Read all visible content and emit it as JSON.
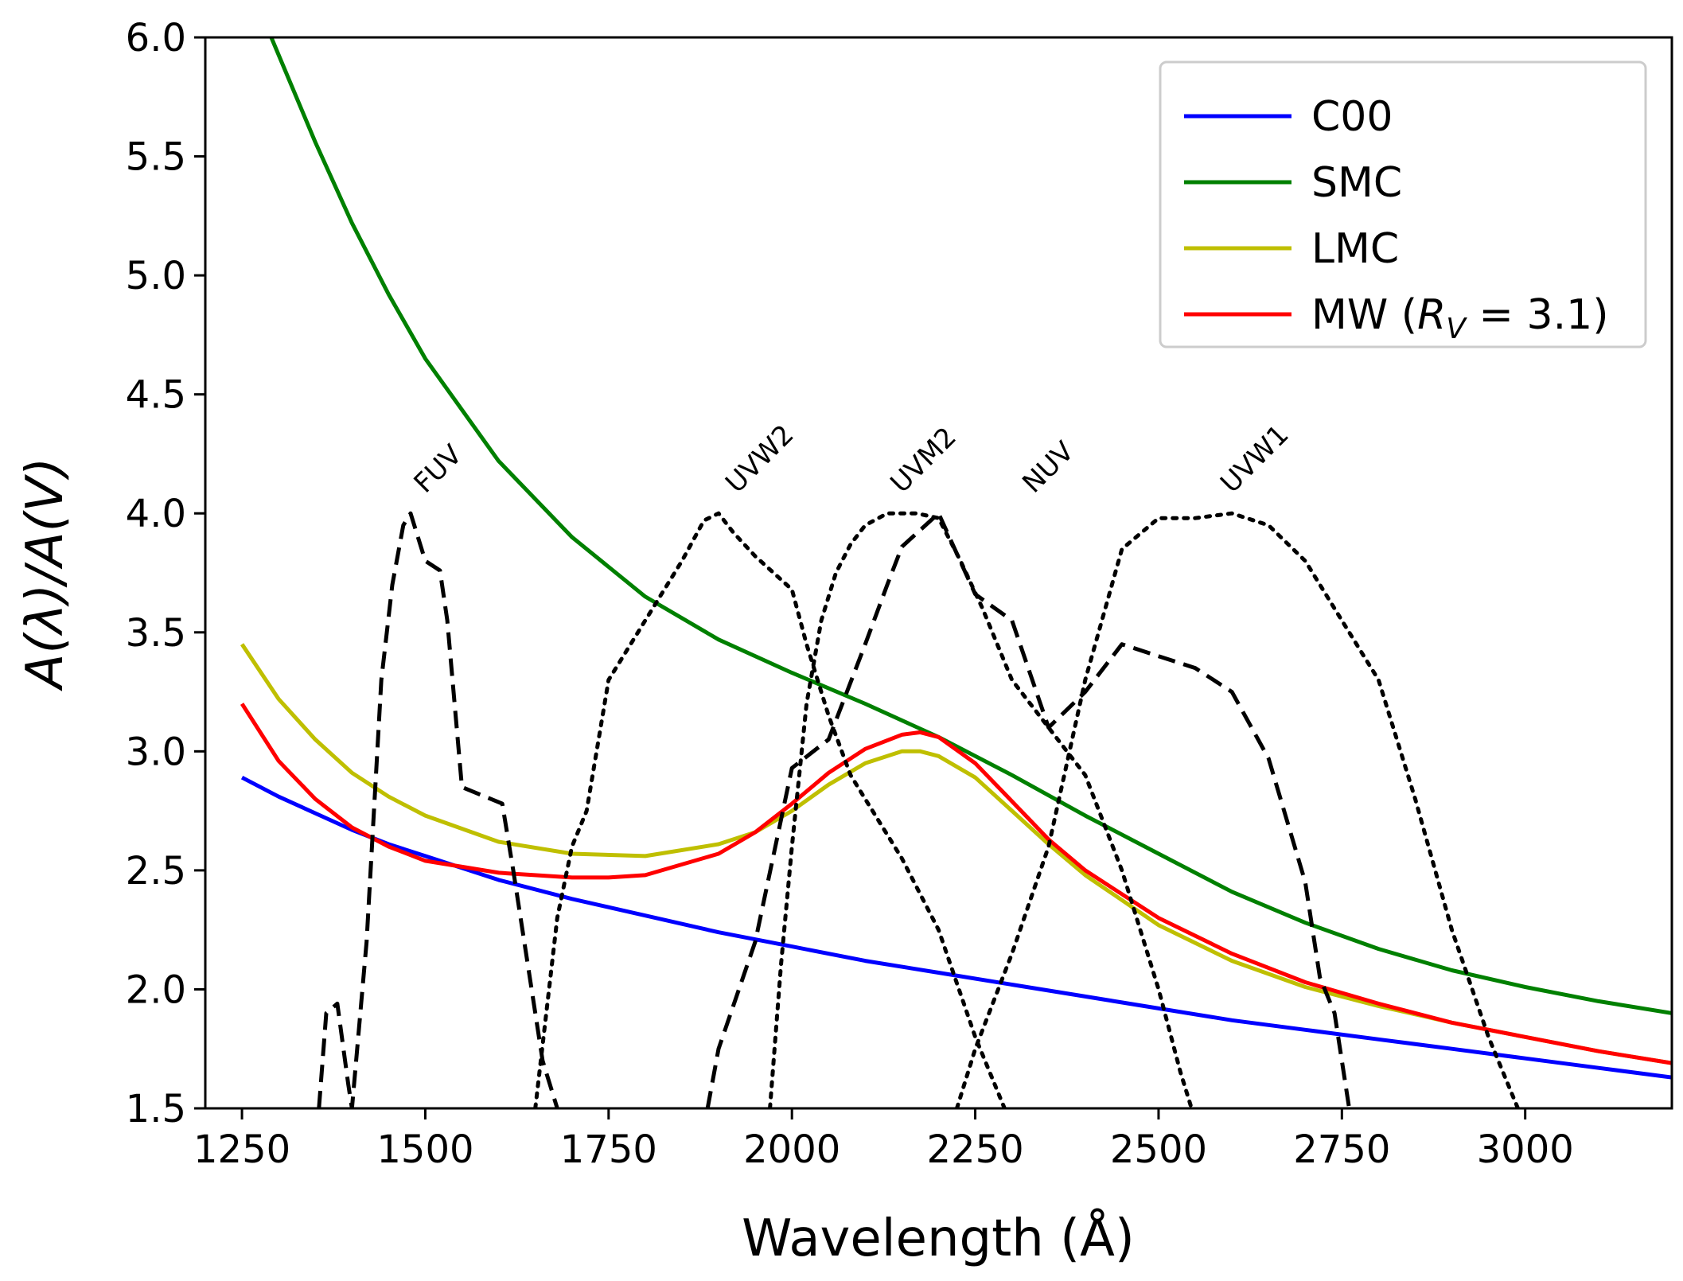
{
  "chart_data": {
    "type": "line",
    "xlabel": "Wavelength (Å)",
    "ylabel": "A(λ)/A(V)",
    "xlim": [
      1200,
      3200
    ],
    "ylim": [
      1.5,
      6.0
    ],
    "x_ticks": [
      1250,
      1500,
      1750,
      2000,
      2250,
      2500,
      2750,
      3000
    ],
    "y_ticks": [
      1.5,
      2.0,
      2.5,
      3.0,
      3.5,
      4.0,
      4.5,
      5.0,
      5.5,
      6.0
    ],
    "grid": false,
    "legend_position": "top-right",
    "series": [
      {
        "name": "C00",
        "color": "#0000ff",
        "style": "solid",
        "x": [
          1250,
          1300,
          1350,
          1400,
          1450,
          1500,
          1600,
          1700,
          1800,
          1900,
          2000,
          2100,
          2200,
          2300,
          2400,
          2500,
          2600,
          2700,
          2800,
          2900,
          3000,
          3100,
          3200
        ],
        "y": [
          2.89,
          2.81,
          2.74,
          2.67,
          2.61,
          2.56,
          2.46,
          2.38,
          2.31,
          2.24,
          2.18,
          2.12,
          2.07,
          2.02,
          1.97,
          1.92,
          1.87,
          1.83,
          1.79,
          1.75,
          1.71,
          1.67,
          1.63
        ]
      },
      {
        "name": "SMC",
        "color": "#008000",
        "style": "solid",
        "x": [
          1290,
          1350,
          1400,
          1450,
          1500,
          1600,
          1700,
          1800,
          1900,
          2000,
          2100,
          2200,
          2300,
          2400,
          2500,
          2600,
          2700,
          2800,
          2900,
          3000,
          3100,
          3200
        ],
        "y": [
          6.0,
          5.56,
          5.22,
          4.92,
          4.65,
          4.22,
          3.9,
          3.65,
          3.47,
          3.33,
          3.2,
          3.06,
          2.9,
          2.73,
          2.57,
          2.41,
          2.28,
          2.17,
          2.08,
          2.01,
          1.95,
          1.9
        ]
      },
      {
        "name": "LMC",
        "color": "#bfbf00",
        "style": "solid",
        "x": [
          1250,
          1300,
          1350,
          1400,
          1450,
          1500,
          1600,
          1700,
          1800,
          1900,
          1950,
          2000,
          2050,
          2100,
          2150,
          2175,
          2200,
          2250,
          2300,
          2350,
          2400,
          2500,
          2600,
          2700,
          2800,
          2900,
          3000,
          3100,
          3200
        ],
        "y": [
          3.45,
          3.22,
          3.05,
          2.91,
          2.81,
          2.73,
          2.62,
          2.57,
          2.56,
          2.61,
          2.66,
          2.75,
          2.86,
          2.95,
          3.0,
          3.0,
          2.98,
          2.89,
          2.75,
          2.61,
          2.48,
          2.27,
          2.12,
          2.01,
          1.93,
          1.86,
          1.8,
          1.74,
          1.69
        ]
      },
      {
        "name": "MW (R_V = 3.1)",
        "color": "#ff0000",
        "style": "solid",
        "x": [
          1250,
          1300,
          1350,
          1400,
          1450,
          1500,
          1600,
          1700,
          1750,
          1800,
          1900,
          1950,
          2000,
          2050,
          2100,
          2150,
          2175,
          2200,
          2250,
          2300,
          2350,
          2400,
          2500,
          2600,
          2700,
          2800,
          2900,
          3000,
          3100,
          3200
        ],
        "y": [
          3.2,
          2.96,
          2.8,
          2.68,
          2.6,
          2.54,
          2.49,
          2.47,
          2.47,
          2.48,
          2.57,
          2.66,
          2.78,
          2.91,
          3.01,
          3.07,
          3.08,
          3.06,
          2.95,
          2.79,
          2.63,
          2.5,
          2.3,
          2.15,
          2.03,
          1.94,
          1.86,
          1.8,
          1.74,
          1.69
        ]
      },
      {
        "name": "FUV",
        "color": "#000000",
        "style": "dashed",
        "x": [
          1355,
          1365,
          1380,
          1395,
          1400,
          1420,
          1440,
          1455,
          1470,
          1480,
          1500,
          1520,
          1530,
          1550,
          1605,
          1620,
          1650,
          1660,
          1680
        ],
        "y": [
          1.5,
          1.9,
          1.94,
          1.6,
          1.5,
          2.2,
          3.3,
          3.7,
          3.95,
          4.0,
          3.8,
          3.76,
          3.55,
          2.85,
          2.78,
          2.5,
          1.9,
          1.7,
          1.5
        ]
      },
      {
        "name": "UVW2",
        "color": "#000000",
        "style": "dotted",
        "x": [
          1650,
          1665,
          1680,
          1700,
          1720,
          1750,
          1800,
          1850,
          1880,
          1900,
          1920,
          1950,
          2000,
          2020,
          2050,
          2080,
          2100,
          2150,
          2200,
          2250,
          2290
        ],
        "y": [
          1.5,
          1.9,
          2.3,
          2.6,
          2.75,
          3.3,
          3.55,
          3.8,
          3.97,
          4.0,
          3.92,
          3.82,
          3.68,
          3.45,
          3.15,
          2.9,
          2.8,
          2.55,
          2.25,
          1.8,
          1.5
        ]
      },
      {
        "name": "UVM2",
        "color": "#000000",
        "style": "dashed",
        "x": [
          1885,
          1900,
          1950,
          2000,
          2050,
          2100,
          2130,
          2150,
          2200,
          2250,
          2300,
          2350,
          2400,
          2450,
          2500,
          2550,
          2600,
          2650,
          2700,
          2720,
          2740,
          2760
        ],
        "y": [
          1.5,
          1.75,
          2.2,
          2.93,
          3.05,
          3.45,
          3.7,
          3.86,
          4.0,
          3.66,
          3.55,
          3.1,
          3.25,
          3.45,
          3.4,
          3.35,
          3.25,
          2.97,
          2.45,
          2.05,
          1.9,
          1.5
        ]
      },
      {
        "name": "UVM2 (dotted)",
        "color": "#000000",
        "style": "dotted",
        "x": [
          1970,
          1985,
          2000,
          2020,
          2040,
          2060,
          2080,
          2100,
          2130,
          2170,
          2200,
          2230,
          2260,
          2300,
          2350,
          2400,
          2450,
          2500,
          2530,
          2545
        ],
        "y": [
          1.5,
          2.1,
          2.6,
          3.2,
          3.55,
          3.75,
          3.87,
          3.95,
          4.0,
          4.0,
          3.98,
          3.8,
          3.6,
          3.3,
          3.1,
          2.9,
          2.5,
          2.0,
          1.65,
          1.5
        ]
      },
      {
        "name": "UVW1",
        "color": "#000000",
        "style": "dotted",
        "x": [
          2225,
          2250,
          2300,
          2350,
          2400,
          2450,
          2500,
          2550,
          2600,
          2650,
          2700,
          2750,
          2800,
          2850,
          2900,
          2950,
          2990
        ],
        "y": [
          1.5,
          1.75,
          2.15,
          2.6,
          3.3,
          3.85,
          3.98,
          3.98,
          4.0,
          3.95,
          3.8,
          3.55,
          3.3,
          2.8,
          2.25,
          1.8,
          1.5
        ]
      }
    ],
    "annotations": [
      {
        "text": "FUV",
        "x": 1500,
        "y": 4.08
      },
      {
        "text": "UVW2",
        "x": 1925,
        "y": 4.08
      },
      {
        "text": "UVM2",
        "x": 2150,
        "y": 4.08
      },
      {
        "text": "NUV",
        "x": 2330,
        "y": 4.08
      },
      {
        "text": "UVW1",
        "x": 2600,
        "y": 4.08
      }
    ],
    "legend": [
      {
        "label": "C00",
        "color": "#0000ff"
      },
      {
        "label": "SMC",
        "color": "#008000"
      },
      {
        "label": "LMC",
        "color": "#bfbf00"
      },
      {
        "label_prefix": "MW (",
        "label_rv": "R",
        "label_sub": "V",
        "label_suffix": " = 3.1)",
        "color": "#ff0000"
      }
    ]
  }
}
